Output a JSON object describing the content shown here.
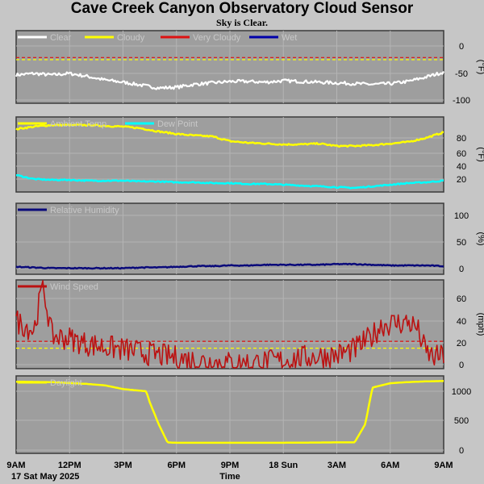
{
  "title": "Cave Creek Canyon Observatory Cloud Sensor",
  "subtitle": "Sky is Clear.",
  "x_axis": {
    "label": "Time",
    "date_label": "17 Sat May 2025",
    "ticks": [
      "9AM",
      "12PM",
      "3PM",
      "6PM",
      "9PM",
      "18 Sun",
      "3AM",
      "6AM",
      "9AM"
    ]
  },
  "colors": {
    "background": "#c6c6c6",
    "plot_bg": "#9e9e9e",
    "grid": "#b4b4b4",
    "clear": "#ffffff",
    "cloudy": "#ffff00",
    "very_cloudy": "#dd1111",
    "wet": "#0000aa",
    "ambient": "#ffff00",
    "dewpoint": "#00ffff",
    "humidity": "#0a0a7a",
    "wind": "#bb1111",
    "daylight": "#ffff00"
  },
  "chart_data": [
    {
      "type": "line",
      "title": "",
      "ylabel": "(°F)",
      "ylim": [
        -100,
        0
      ],
      "yticks": [
        "0",
        "-50",
        "-100"
      ],
      "legend": [
        "Clear",
        "Cloudy",
        "Very Cloudy",
        "Wet"
      ],
      "thresholds": [
        {
          "name": "Cloudy",
          "value": -40
        },
        {
          "name": "Very Cloudy",
          "value": -37
        }
      ],
      "series": [
        {
          "name": "Clear",
          "x": [
            0,
            1,
            2,
            3,
            4,
            5,
            6,
            7,
            8,
            9,
            10,
            11,
            12,
            13,
            14,
            15,
            16,
            17,
            18,
            19,
            20,
            21,
            22,
            23,
            24
          ],
          "y": [
            -61,
            -59,
            -61,
            -59,
            -63,
            -68,
            -71,
            -75,
            -79,
            -78,
            -74,
            -72,
            -70,
            -70,
            -71,
            -69,
            -70,
            -71,
            -72,
            -73,
            -74,
            -73,
            -70,
            -64,
            -57
          ]
        }
      ]
    },
    {
      "type": "line",
      "ylabel": "(°F)",
      "ylim": [
        5,
        98
      ],
      "yticks": [
        "80",
        "60",
        "40",
        "20"
      ],
      "legend": [
        "Ambient Temp",
        "Dew Point"
      ],
      "series": [
        {
          "name": "Ambient Temp",
          "x": [
            0,
            1,
            2,
            3,
            4,
            5,
            6,
            7,
            8,
            9,
            10,
            11,
            12,
            13,
            14,
            15,
            16,
            17,
            18,
            19,
            20,
            21,
            22,
            23,
            24
          ],
          "y": [
            83,
            86,
            88,
            88,
            88,
            87,
            86,
            84,
            80,
            77,
            75,
            74,
            68,
            66,
            65,
            64,
            64,
            65,
            62,
            62,
            63,
            65,
            67,
            72,
            79
          ]
        },
        {
          "name": "Dew Point",
          "x": [
            0,
            1,
            2,
            3,
            4,
            5,
            6,
            7,
            8,
            9,
            10,
            11,
            12,
            13,
            14,
            15,
            16,
            17,
            18,
            19,
            20,
            21,
            22,
            23,
            24
          ],
          "y": [
            26,
            21,
            20,
            20,
            19,
            19,
            19,
            18,
            18,
            17,
            17,
            16,
            16,
            15,
            15,
            14,
            13,
            12,
            11,
            10,
            12,
            14,
            16,
            17,
            19
          ]
        }
      ]
    },
    {
      "type": "line",
      "ylabel": "(%)",
      "ylim": [
        0,
        105
      ],
      "yticks": [
        "100",
        "50",
        "0"
      ],
      "legend": [
        "Relative Humidity"
      ],
      "series": [
        {
          "name": "Relative Humidity",
          "x": [
            0,
            1,
            2,
            3,
            4,
            5,
            6,
            7,
            8,
            9,
            10,
            11,
            12,
            13,
            14,
            15,
            16,
            17,
            18,
            19,
            20,
            21,
            22,
            23,
            24
          ],
          "y": [
            11,
            10,
            9,
            9,
            9,
            9,
            9,
            10,
            10,
            11,
            12,
            12,
            13,
            13,
            14,
            14,
            14,
            14,
            15,
            15,
            14,
            13,
            13,
            13,
            12
          ]
        }
      ]
    },
    {
      "type": "line",
      "ylabel": "(mph)",
      "ylim": [
        0,
        65
      ],
      "yticks": [
        "60",
        "40",
        "20",
        "0"
      ],
      "legend": [
        "Wind Speed"
      ],
      "thresholds": [
        {
          "name": "Windy",
          "value": 20
        },
        {
          "name": "Calm",
          "value": 15
        }
      ],
      "series": [
        {
          "name": "Wind Speed",
          "x": [
            0,
            1,
            1.5,
            2,
            3,
            4,
            5,
            6,
            7,
            8,
            9,
            10,
            11,
            12,
            13,
            14,
            15,
            16,
            17,
            18,
            19,
            20,
            20.5,
            21,
            22,
            22.5,
            23,
            23.5,
            24
          ],
          "y": [
            35,
            28,
            62,
            24,
            22,
            18,
            16,
            14,
            12,
            10,
            8,
            6,
            5,
            4,
            4,
            5,
            6,
            8,
            9,
            10,
            14,
            24,
            32,
            33,
            34,
            30,
            12,
            8,
            10
          ]
        }
      ]
    },
    {
      "type": "line",
      "ylabel": "",
      "ylim": [
        0,
        1060
      ],
      "yticks": [
        "1000",
        "500",
        "0"
      ],
      "legend": [
        "Daylight"
      ],
      "series": [
        {
          "name": "Daylight",
          "x": [
            0,
            2,
            4,
            5,
            6,
            7.3,
            7.5,
            8,
            8.5,
            9,
            12,
            15,
            18,
            19,
            19.6,
            20,
            21,
            22,
            23,
            24
          ],
          "y": [
            980,
            975,
            950,
            930,
            880,
            850,
            700,
            400,
            150,
            145,
            145,
            145,
            150,
            150,
            400,
            900,
            960,
            975,
            985,
            990
          ]
        }
      ]
    }
  ]
}
